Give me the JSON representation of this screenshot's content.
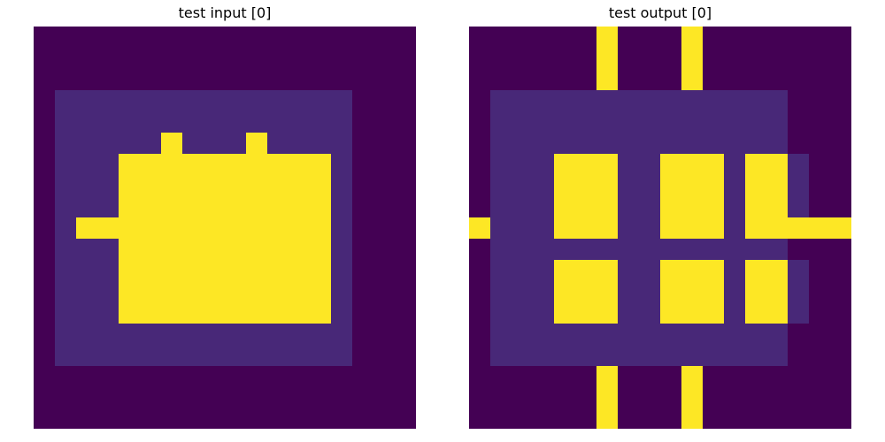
{
  "panels": [
    {
      "title": "test input [0]",
      "palette": [
        "#440154",
        "#482878",
        "#fde725"
      ],
      "grid": [
        "000000000000000000",
        "000000000000000000",
        "000000000000000000",
        "011111111111111000",
        "011111111111111000",
        "011111211121111000",
        "011122222222221000",
        "011122222222221000",
        "011122222222221000",
        "012222222222221000",
        "011122222222221000",
        "011122222222221000",
        "011122222222221000",
        "011122222222221000",
        "011111111111111000",
        "011111111111111000",
        "000000000000000000",
        "000000000000000000",
        "000000000000000000"
      ]
    },
    {
      "title": "test output [0]",
      "palette": [
        "#440154",
        "#482878",
        "#fde725"
      ],
      "grid": [
        "000000200020000000",
        "000000200020000000",
        "000000200020000000",
        "011111111111111000",
        "011111111111111000",
        "011111111111111000",
        "011122211222122100",
        "011122211222122100",
        "011122211222122100",
        "211122211222122222",
        "011111111111111000",
        "011122211222122100",
        "011122211222122100",
        "011122211222122100",
        "011111111111111000",
        "011111111111111000",
        "000000200020000000",
        "000000200020000000",
        "000000200020000000"
      ]
    }
  ]
}
